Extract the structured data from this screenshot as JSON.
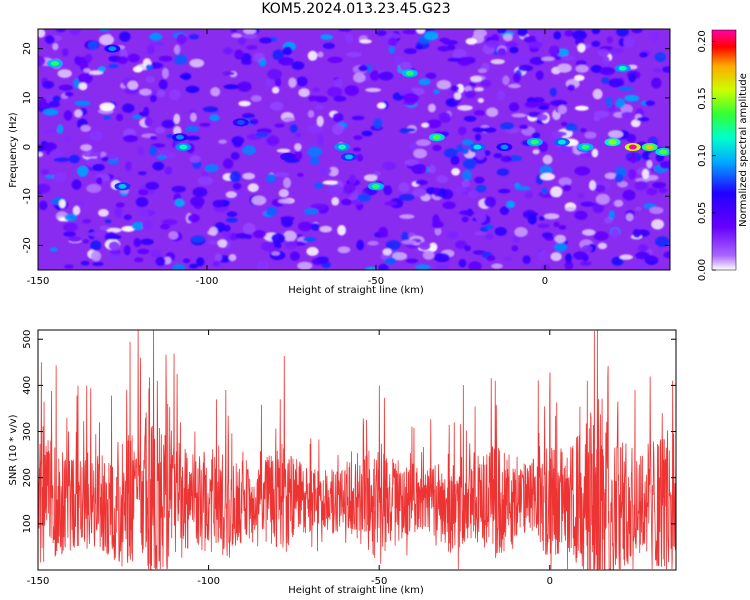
{
  "title": "KOM5.2024.013.23.45.G23",
  "colors": {
    "snr_line": "#ee3333",
    "axis": "#000000"
  },
  "chart_data": [
    {
      "type": "heatmap",
      "xlabel": "Height of straight line (km)",
      "ylabel": "Frequency (Hz)",
      "xlim": [
        -150,
        37
      ],
      "ylim": [
        -25,
        24
      ],
      "xticks": [
        -150,
        -100,
        -50,
        0
      ],
      "yticks": [
        -20,
        -10,
        0,
        10,
        20
      ],
      "colorbar": {
        "label": "Normalized spectral amplitude",
        "range": [
          0.0,
          0.21
        ],
        "ticks": [
          "0.00",
          "0.05",
          "0.10",
          "0.15",
          "0.20"
        ],
        "colormap": [
          "#ffffff",
          "#8800ff",
          "#3300ff",
          "#00c8ff",
          "#00ff66",
          "#ffff00",
          "#ff0000",
          "#ff00aa"
        ]
      },
      "features": [
        {
          "x": -145,
          "y": 17,
          "value": 0.13
        },
        {
          "x": -128,
          "y": 20,
          "value": 0.09
        },
        {
          "x": -107,
          "y": 0,
          "value": 0.12
        },
        {
          "x": -108,
          "y": 2,
          "value": 0.09
        },
        {
          "x": -76,
          "y": -2,
          "value": 0.07
        },
        {
          "x": -60,
          "y": 0,
          "value": 0.12
        },
        {
          "x": -58,
          "y": -2,
          "value": 0.1
        },
        {
          "x": -50,
          "y": -8,
          "value": 0.13
        },
        {
          "x": -40,
          "y": 15,
          "value": 0.13
        },
        {
          "x": -32,
          "y": 2,
          "value": 0.14
        },
        {
          "x": -20,
          "y": 0,
          "value": 0.11
        },
        {
          "x": -12,
          "y": 0,
          "value": 0.09
        },
        {
          "x": -3,
          "y": 1,
          "value": 0.13
        },
        {
          "x": 5,
          "y": 1,
          "value": 0.11
        },
        {
          "x": 12,
          "y": 0,
          "value": 0.13
        },
        {
          "x": 20,
          "y": 1,
          "value": 0.15
        },
        {
          "x": 26,
          "y": 0,
          "value": 0.21
        },
        {
          "x": 31,
          "y": 0,
          "value": 0.17
        },
        {
          "x": 35,
          "y": -1,
          "value": 0.14
        },
        {
          "x": 23,
          "y": 16,
          "value": 0.12
        },
        {
          "x": -90,
          "y": 5,
          "value": 0.08
        },
        {
          "x": -125,
          "y": -8,
          "value": 0.1
        }
      ]
    },
    {
      "type": "line",
      "xlabel": "Height of straight line (km)",
      "ylabel": "SNR (10 * v/v)",
      "xlim": [
        -150,
        37
      ],
      "ylim": [
        0,
        520
      ],
      "xticks": [
        -150,
        -100,
        -50,
        0
      ],
      "yticks": [
        100,
        200,
        300,
        400,
        500
      ],
      "series": [
        {
          "baseline": 150,
          "peaks": [
            {
              "x": -149,
              "y": 450
            },
            {
              "x": -141,
              "y": 300
            },
            {
              "x": -132,
              "y": 320
            },
            {
              "x": -124,
              "y": 390
            },
            {
              "x": -120,
              "y": 460
            },
            {
              "x": -115,
              "y": 410
            },
            {
              "x": -112,
              "y": 360
            },
            {
              "x": -104,
              "y": 300
            },
            {
              "x": -95,
              "y": 390
            },
            {
              "x": -79,
              "y": 370
            },
            {
              "x": -50,
              "y": 400
            },
            {
              "x": -28,
              "y": 320
            },
            {
              "x": -16,
              "y": 410
            },
            {
              "x": 0,
              "y": 390
            },
            {
              "x": 11,
              "y": 410
            },
            {
              "x": 14,
              "y": 520
            },
            {
              "x": 17,
              "y": 420
            },
            {
              "x": 25,
              "y": 390
            },
            {
              "x": 33,
              "y": 340
            },
            {
              "x": 36,
              "y": 410
            }
          ]
        }
      ]
    }
  ]
}
